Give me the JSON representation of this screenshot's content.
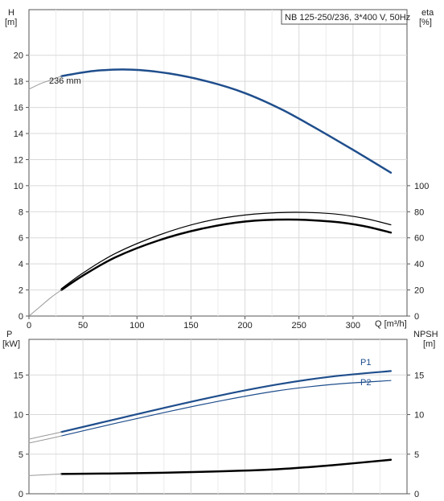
{
  "chart_data": [
    {
      "type": "line",
      "title": "NB 125-250/236, 3*400 V, 50Hz",
      "xlabel": "Q [m³/h]",
      "ylabel_left": "H\n[m]",
      "ylabel_right": "eta\n[%]",
      "xlim": [
        0,
        350
      ],
      "ylim_left": [
        0,
        23.5
      ],
      "ylim_right": [
        0,
        235
      ],
      "x_ticks": [
        0,
        50,
        100,
        150,
        200,
        250,
        300
      ],
      "y_ticks_left": [
        0,
        2,
        4,
        6,
        8,
        10,
        12,
        14,
        16,
        18,
        20
      ],
      "y_ticks_right": [
        0,
        20,
        40,
        60,
        80,
        100
      ],
      "grid": true,
      "annotation": "236 mm",
      "series": [
        {
          "role": "head",
          "axis": "left",
          "color": "#1f4e8c",
          "width": 2.5,
          "x": [
            30,
            60,
            95,
            130,
            165,
            200,
            235,
            270,
            305,
            335
          ],
          "y": [
            18.4,
            18.8,
            18.9,
            18.6,
            18.0,
            17.1,
            15.8,
            14.2,
            12.5,
            11.0
          ]
        },
        {
          "role": "head-extension",
          "axis": "left",
          "color": "#999999",
          "width": 1,
          "x": [
            0,
            10,
            20,
            30
          ],
          "y": [
            17.4,
            17.8,
            18.1,
            18.4
          ]
        },
        {
          "role": "eta-thin",
          "axis": "right",
          "color": "#000000",
          "width": 1.2,
          "x": [
            30,
            50,
            80,
            120,
            160,
            200,
            240,
            280,
            310,
            335
          ],
          "y": [
            21,
            33,
            48,
            62,
            72,
            77.5,
            79.5,
            78.5,
            75,
            70
          ]
        },
        {
          "role": "eta-thick",
          "axis": "right",
          "color": "#000000",
          "width": 2.5,
          "x": [
            30,
            50,
            80,
            120,
            160,
            200,
            240,
            280,
            310,
            335
          ],
          "y": [
            20,
            31,
            45,
            58,
            67,
            72.5,
            74,
            72.5,
            69,
            64
          ]
        },
        {
          "role": "eta-extension",
          "axis": "right",
          "color": "#999999",
          "width": 1,
          "x": [
            0,
            10,
            20,
            30
          ],
          "y": [
            0,
            7,
            14,
            20
          ]
        }
      ]
    },
    {
      "type": "line",
      "ylabel_left": "P\n[kW]",
      "ylabel_right": "NPSH\n[m]",
      "xlim": [
        0,
        350
      ],
      "ylim_left": [
        0,
        19.5
      ],
      "ylim_right": [
        0,
        19.5
      ],
      "y_ticks_left": [
        0,
        5,
        10,
        15
      ],
      "y_ticks_right": [
        0,
        5,
        10,
        15
      ],
      "grid": true,
      "series": [
        {
          "name": "P1",
          "axis": "left",
          "color": "#1f4e8c",
          "width": 2.2,
          "x": [
            30,
            80,
            130,
            180,
            230,
            280,
            335
          ],
          "y": [
            7.8,
            9.4,
            11.0,
            12.5,
            13.8,
            14.8,
            15.5
          ]
        },
        {
          "name": "P2",
          "axis": "left",
          "color": "#1f4e8c",
          "width": 1.2,
          "x": [
            30,
            80,
            130,
            180,
            230,
            280,
            335
          ],
          "y": [
            7.3,
            8.9,
            10.4,
            11.8,
            13.0,
            13.8,
            14.3
          ]
        },
        {
          "role": "P1-extension",
          "axis": "left",
          "color": "#999999",
          "width": 1,
          "x": [
            0,
            15,
            30
          ],
          "y": [
            6.9,
            7.35,
            7.8
          ]
        },
        {
          "role": "P2-extension",
          "axis": "left",
          "color": "#999999",
          "width": 1,
          "x": [
            0,
            15,
            30
          ],
          "y": [
            6.4,
            6.85,
            7.3
          ]
        },
        {
          "role": "npsh",
          "axis": "right",
          "color": "#000000",
          "width": 2.5,
          "x": [
            30,
            100,
            170,
            230,
            280,
            335
          ],
          "y": [
            2.5,
            2.6,
            2.8,
            3.1,
            3.6,
            4.3
          ]
        },
        {
          "role": "npsh-extension",
          "axis": "right",
          "color": "#999999",
          "width": 1,
          "x": [
            0,
            30
          ],
          "y": [
            2.3,
            2.5
          ]
        }
      ]
    }
  ]
}
